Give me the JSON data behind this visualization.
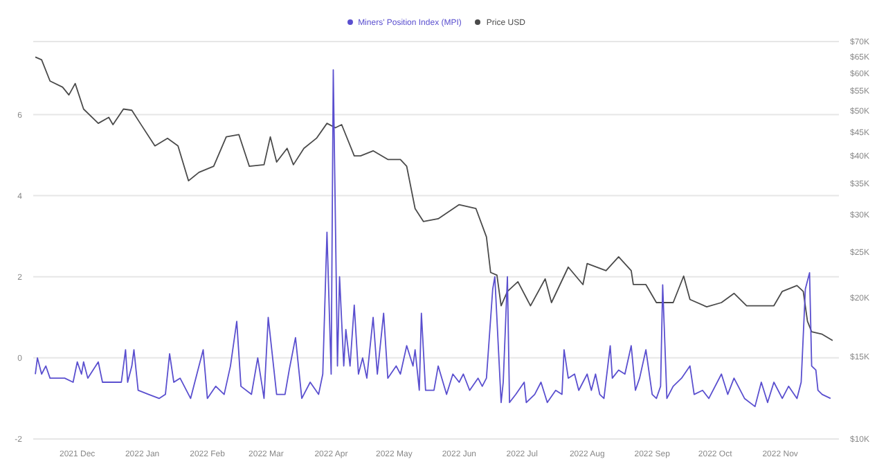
{
  "chart_data": {
    "type": "line",
    "legend": "top",
    "grid": "y",
    "log": "y2",
    "xlim": [
      "2021-11-10",
      "2022-11-29"
    ],
    "xticks": [
      {
        "value": "2021-12-01",
        "label": "2021 Dec"
      },
      {
        "value": "2022-01-01",
        "label": "2022 Jan"
      },
      {
        "value": "2022-02-01",
        "label": "2022 Feb"
      },
      {
        "value": "2022-03-01",
        "label": "2022 Mar"
      },
      {
        "value": "2022-04-01",
        "label": "2022 Apr"
      },
      {
        "value": "2022-05-01",
        "label": "2022 May"
      },
      {
        "value": "2022-06-01",
        "label": "2022 Jun"
      },
      {
        "value": "2022-07-01",
        "label": "2022 Jul"
      },
      {
        "value": "2022-08-01",
        "label": "2022 Aug"
      },
      {
        "value": "2022-09-01",
        "label": "2022 Sep"
      },
      {
        "value": "2022-10-01",
        "label": "2022 Oct"
      },
      {
        "value": "2022-11-01",
        "label": "2022 Nov"
      }
    ],
    "ylim": [
      -2,
      7.8
    ],
    "yticks": [
      -2,
      0,
      2,
      4,
      6
    ],
    "y2lim": [
      10000,
      70000
    ],
    "y2ticks": [
      {
        "value": 10000,
        "label": "$10K"
      },
      {
        "value": 15000,
        "label": "$15K"
      },
      {
        "value": 20000,
        "label": "$20K"
      },
      {
        "value": 25000,
        "label": "$25K"
      },
      {
        "value": 30000,
        "label": "$30K"
      },
      {
        "value": 35000,
        "label": "$35K"
      },
      {
        "value": 40000,
        "label": "$40K"
      },
      {
        "value": 45000,
        "label": "$45K"
      },
      {
        "value": 50000,
        "label": "$50K"
      },
      {
        "value": 55000,
        "label": "$55K"
      },
      {
        "value": 60000,
        "label": "$60K"
      },
      {
        "value": 65000,
        "label": "$65K"
      },
      {
        "value": 70000,
        "label": "$70K"
      }
    ],
    "series": [
      {
        "name": "Price USD",
        "color": "#4a4a4a",
        "axis": "y2",
        "x": [
          "2021-11-11",
          "2021-11-14",
          "2021-11-18",
          "2021-11-24",
          "2021-11-27",
          "2021-11-30",
          "2021-12-04",
          "2021-12-11",
          "2021-12-16",
          "2021-12-18",
          "2021-12-23",
          "2021-12-27",
          "2021-12-31",
          "2022-01-07",
          "2022-01-13",
          "2022-01-18",
          "2022-01-23",
          "2022-01-28",
          "2022-02-04",
          "2022-02-10",
          "2022-02-16",
          "2022-02-21",
          "2022-02-28",
          "2022-03-03",
          "2022-03-06",
          "2022-03-11",
          "2022-03-14",
          "2022-03-19",
          "2022-03-25",
          "2022-03-30",
          "2022-04-03",
          "2022-04-06",
          "2022-04-12",
          "2022-04-15",
          "2022-04-21",
          "2022-04-28",
          "2022-05-04",
          "2022-05-07",
          "2022-05-11",
          "2022-05-15",
          "2022-05-22",
          "2022-06-01",
          "2022-06-09",
          "2022-06-14",
          "2022-06-16",
          "2022-06-19",
          "2022-06-21",
          "2022-06-24",
          "2022-06-29",
          "2022-07-05",
          "2022-07-12",
          "2022-07-15",
          "2022-07-23",
          "2022-07-30",
          "2022-08-01",
          "2022-08-10",
          "2022-08-16",
          "2022-08-22",
          "2022-08-23",
          "2022-08-29",
          "2022-09-03",
          "2022-09-11",
          "2022-09-16",
          "2022-09-19",
          "2022-09-27",
          "2022-10-04",
          "2022-10-10",
          "2022-10-16",
          "2022-10-29",
          "2022-11-02",
          "2022-11-09",
          "2022-11-12",
          "2022-11-14",
          "2022-11-16",
          "2022-11-21",
          "2022-11-26"
        ],
        "values": [
          64900,
          64000,
          57700,
          56000,
          53900,
          57000,
          50300,
          46900,
          48300,
          46600,
          50300,
          50000,
          46900,
          42000,
          43600,
          42000,
          35400,
          36900,
          38000,
          43900,
          44400,
          38000,
          38300,
          43900,
          38800,
          41500,
          38300,
          41500,
          43600,
          46900,
          45900,
          46600,
          40000,
          40000,
          41000,
          39300,
          39300,
          38000,
          30900,
          29000,
          29400,
          31500,
          30900,
          26900,
          22600,
          22300,
          19200,
          20600,
          21600,
          19200,
          21900,
          19500,
          23200,
          21300,
          23600,
          22800,
          24400,
          22800,
          21300,
          21300,
          19500,
          19500,
          22200,
          19800,
          19100,
          19500,
          20400,
          19200,
          19200,
          20600,
          21200,
          20600,
          17800,
          16900,
          16700,
          16200
        ]
      },
      {
        "name": "Miners' Position Index (MPI)",
        "color": "#5a4fcf",
        "x": [
          "2021-11-11",
          "2021-11-12",
          "2021-11-14",
          "2021-11-16",
          "2021-11-18",
          "2021-11-25",
          "2021-11-29",
          "2021-12-01",
          "2021-12-03",
          "2021-12-04",
          "2021-12-06",
          "2021-12-11",
          "2021-12-13",
          "2021-12-18",
          "2021-12-22",
          "2021-12-24",
          "2021-12-25",
          "2021-12-27",
          "2021-12-28",
          "2021-12-30",
          "2022-01-04",
          "2022-01-09",
          "2022-01-12",
          "2022-01-14",
          "2022-01-16",
          "2022-01-19",
          "2022-01-24",
          "2022-01-27",
          "2022-01-30",
          "2022-02-01",
          "2022-02-05",
          "2022-02-09",
          "2022-02-12",
          "2022-02-15",
          "2022-02-17",
          "2022-02-22",
          "2022-02-25",
          "2022-02-28",
          "2022-03-02",
          "2022-03-06",
          "2022-03-10",
          "2022-03-12",
          "2022-03-15",
          "2022-03-18",
          "2022-03-22",
          "2022-03-26",
          "2022-03-28",
          "2022-03-30",
          "2022-04-01",
          "2022-04-02",
          "2022-04-04",
          "2022-04-05",
          "2022-04-07",
          "2022-04-08",
          "2022-04-10",
          "2022-04-12",
          "2022-04-14",
          "2022-04-16",
          "2022-04-18",
          "2022-04-21",
          "2022-04-23",
          "2022-04-26",
          "2022-04-28",
          "2022-05-02",
          "2022-05-04",
          "2022-05-07",
          "2022-05-10",
          "2022-05-11",
          "2022-05-13",
          "2022-05-14",
          "2022-05-16",
          "2022-05-20",
          "2022-05-22",
          "2022-05-26",
          "2022-05-29",
          "2022-06-01",
          "2022-06-03",
          "2022-06-06",
          "2022-06-10",
          "2022-06-12",
          "2022-06-14",
          "2022-06-17",
          "2022-06-18",
          "2022-06-21",
          "2022-06-22",
          "2022-06-24",
          "2022-06-25",
          "2022-06-28",
          "2022-07-02",
          "2022-07-03",
          "2022-07-07",
          "2022-07-10",
          "2022-07-13",
          "2022-07-17",
          "2022-07-20",
          "2022-07-21",
          "2022-07-23",
          "2022-07-26",
          "2022-07-28",
          "2022-08-01",
          "2022-08-03",
          "2022-08-05",
          "2022-08-07",
          "2022-08-09",
          "2022-08-12",
          "2022-08-13",
          "2022-08-16",
          "2022-08-19",
          "2022-08-22",
          "2022-08-24",
          "2022-08-26",
          "2022-08-29",
          "2022-09-01",
          "2022-09-03",
          "2022-09-05",
          "2022-09-06",
          "2022-09-08",
          "2022-09-11",
          "2022-09-15",
          "2022-09-19",
          "2022-09-21",
          "2022-09-25",
          "2022-09-28",
          "2022-10-04",
          "2022-10-07",
          "2022-10-10",
          "2022-10-15",
          "2022-10-20",
          "2022-10-23",
          "2022-10-26",
          "2022-10-29",
          "2022-11-02",
          "2022-11-05",
          "2022-11-09",
          "2022-11-11",
          "2022-11-13",
          "2022-11-15",
          "2022-11-16",
          "2022-11-18",
          "2022-11-19",
          "2022-11-21",
          "2022-11-25"
        ],
        "values": [
          -0.4,
          0,
          -0.4,
          -0.2,
          -0.5,
          -0.5,
          -0.6,
          -0.1,
          -0.4,
          -0.1,
          -0.5,
          -0.1,
          -0.6,
          -0.6,
          -0.6,
          0.2,
          -0.6,
          -0.2,
          0.2,
          -0.8,
          -0.9,
          -1.0,
          -0.9,
          0.1,
          -0.6,
          -0.5,
          -1.0,
          -0.4,
          0.2,
          -1.0,
          -0.7,
          -0.9,
          -0.2,
          0.9,
          -0.7,
          -0.9,
          0,
          -1.0,
          1.0,
          -0.9,
          -0.9,
          -0.3,
          0.5,
          -1.0,
          -0.6,
          -0.9,
          -0.4,
          3.1,
          -0.4,
          7.1,
          -0.2,
          2.0,
          -0.2,
          0.7,
          -0.2,
          1.3,
          -0.4,
          0,
          -0.5,
          1.0,
          -0.4,
          1.1,
          -0.5,
          -0.2,
          -0.4,
          0.3,
          -0.2,
          0.2,
          -0.8,
          1.1,
          -0.8,
          -0.8,
          -0.2,
          -0.9,
          -0.4,
          -0.6,
          -0.4,
          -0.8,
          -0.5,
          -0.7,
          -0.5,
          1.7,
          2.0,
          -1.1,
          -0.6,
          2.0,
          -1.1,
          -0.9,
          -0.6,
          -1.1,
          -0.9,
          -0.6,
          -1.1,
          -0.8,
          -0.9,
          0.2,
          -0.5,
          -0.4,
          -0.8,
          -0.4,
          -0.8,
          -0.4,
          -0.9,
          -1.0,
          0.3,
          -0.5,
          -0.3,
          -0.4,
          0.3,
          -0.8,
          -0.5,
          0.2,
          -0.9,
          -1.0,
          -0.7,
          1.8,
          -1.0,
          -0.7,
          -0.5,
          -0.2,
          -0.9,
          -0.8,
          -1.0,
          -0.4,
          -0.9,
          -0.5,
          -1.0,
          -1.2,
          -0.6,
          -1.1,
          -0.6,
          -1.0,
          -0.7,
          -1.0,
          -0.6,
          1.7,
          2.1,
          -0.2,
          -0.3,
          -0.8,
          -0.9,
          -1.0
        ]
      }
    ]
  }
}
